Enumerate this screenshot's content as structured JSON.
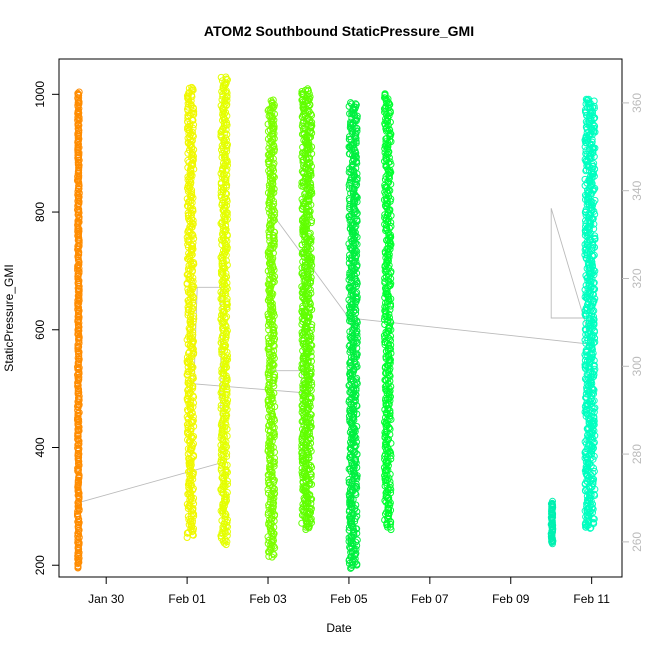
{
  "chart_data": {
    "type": "scatter",
    "title": "ATOM2 Southbound StaticPressure_GMI",
    "xlabel": "Date",
    "ylabel": "StaticPressure_GMI",
    "x_axis_type": "date",
    "x_tick_labels": [
      "Jan 30",
      "Feb 01",
      "Feb 03",
      "Feb 05",
      "Feb 07",
      "Feb 09",
      "Feb 11"
    ],
    "x_tick_dates": [
      "2016-01-30",
      "2016-02-01",
      "2016-02-03",
      "2016-02-05",
      "2016-02-07",
      "2016-02-09",
      "2016-02-11"
    ],
    "xlim": [
      "2016-01-28T20:00",
      "2016-02-11T18:00"
    ],
    "ylim": [
      180,
      1060
    ],
    "y_ticks": [
      200,
      400,
      600,
      800,
      1000
    ],
    "secondary_ylim": [
      252,
      370
    ],
    "secondary_y_ticks": [
      260,
      280,
      300,
      320,
      340,
      360
    ],
    "secondary_color": "#bbbbbb",
    "marker": "open-circle",
    "series": [
      {
        "color": "#ff8c00",
        "start": "2016-01-29T07:00",
        "end": "2016-01-29T08:00",
        "ymin": 196,
        "ymax": 1004
      },
      {
        "color": "#f0f800",
        "start": "2016-02-01T00:00",
        "end": "2016-02-01T04:00",
        "ymin": 248,
        "ymax": 1013
      },
      {
        "color": "#e4ff00",
        "start": "2016-02-01T20:00",
        "end": "2016-02-02T00:00",
        "ymin": 236,
        "ymax": 1030
      },
      {
        "color": "#7cff00",
        "start": "2016-02-03T00:00",
        "end": "2016-02-03T04:00",
        "ymin": 215,
        "ymax": 990
      },
      {
        "color": "#60ff00",
        "start": "2016-02-03T20:00",
        "end": "2016-02-04T02:00",
        "ymin": 262,
        "ymax": 1008
      },
      {
        "color": "#00f040",
        "start": "2016-02-05T00:00",
        "end": "2016-02-05T05:00",
        "ymin": 196,
        "ymax": 985
      },
      {
        "color": "#00ff30",
        "start": "2016-02-05T21:00",
        "end": "2016-02-06T01:00",
        "ymin": 262,
        "ymax": 1000
      },
      {
        "color": "#00f0b0",
        "start": "2016-02-10T00:00",
        "end": "2016-02-10T01:00",
        "ymin": 238,
        "ymax": 308
      },
      {
        "color": "#00ffc0",
        "start": "2016-02-10T20:00",
        "end": "2016-02-11T02:00",
        "ymin": 262,
        "ymax": 992
      }
    ],
    "secondary_line": {
      "color": "#bbbbbb",
      "points": [
        [
          "2016-01-29T08:00",
          269
        ],
        [
          "2016-02-01T20:00",
          278
        ],
        [
          "2016-02-01T20:00",
          318
        ],
        [
          "2016-02-01T06:00",
          318
        ],
        [
          "2016-02-01T04:00",
          296
        ],
        [
          "2016-02-03T20:00",
          294
        ],
        [
          "2016-02-03T20:00",
          299
        ],
        [
          "2016-02-03T02:00",
          299
        ],
        [
          "2016-02-03T02:00",
          335
        ],
        [
          "2016-02-05T00:00",
          311
        ],
        [
          "2016-02-11T00:00",
          305
        ],
        [
          "2016-02-10T00:00",
          336
        ],
        [
          "2016-02-10T00:00",
          311
        ],
        [
          "2016-02-10T20:00",
          311
        ]
      ]
    }
  }
}
